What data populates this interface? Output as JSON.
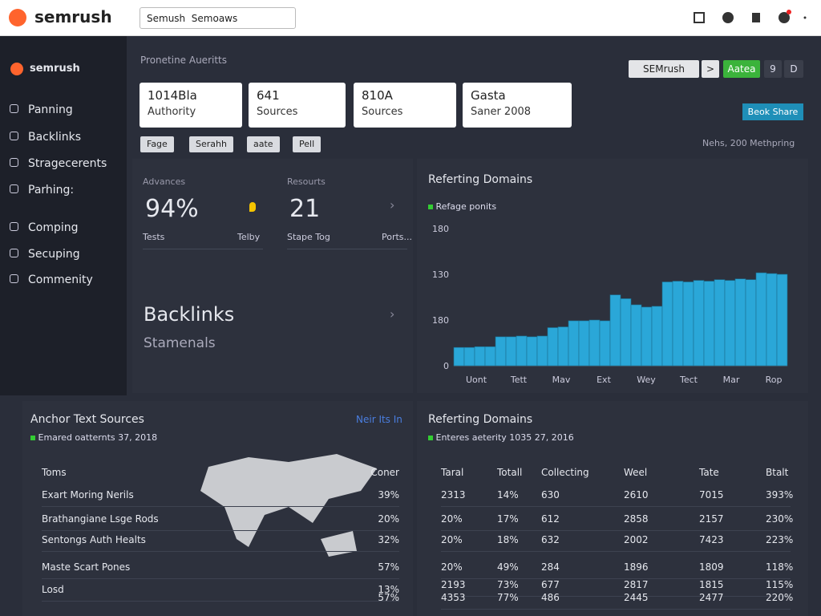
{
  "header": {
    "logo": "semrush",
    "search": [
      "Semush",
      "Semoaws"
    ]
  },
  "sidebar": {
    "brand": "semrush",
    "items": [
      "Panning",
      "Backlinks",
      "Stragecerents",
      "Parhing:",
      "Comping",
      "Secuping",
      "Commenity"
    ]
  },
  "top": {
    "title": "Pronetine Aueritts",
    "buttons": [
      "SEMrush",
      ">",
      "Aatea",
      "9",
      "D"
    ],
    "share": "Beok Share",
    "note": "Nehs, 200 Methpring",
    "cards": [
      {
        "value": "1014Bla",
        "label": "Authority"
      },
      {
        "value": "641",
        "label": "Sources"
      },
      {
        "value": "810A",
        "label": "Sources"
      },
      {
        "value": "Gasta",
        "label": "Saner 2008"
      }
    ],
    "chips": [
      "Fage",
      "Serahh",
      "aate",
      "Pell"
    ]
  },
  "stats": [
    {
      "label": "Advances",
      "value": "94%",
      "left": "Tests",
      "right": "Telby"
    },
    {
      "label": "Resourts",
      "value": "21",
      "left": "Stape Tog",
      "right": "Ports..."
    }
  ],
  "backlinks": {
    "title": "Backlinks",
    "subtitle": "Stamenals"
  },
  "referring_chart": {
    "type": "bar",
    "title": "Referting Domains",
    "legend": "Refage ponits",
    "color": "#2aa7d8",
    "y_labels": [
      "180",
      "130",
      "180",
      "0"
    ],
    "categories": [
      "Uont",
      "Tett",
      "Mav",
      "Ext",
      "Wey",
      "Tect",
      "Mar",
      "Rop"
    ],
    "ylim": [
      0,
      180
    ],
    "values": [
      24,
      24,
      25,
      25,
      38,
      38,
      39,
      38,
      39,
      50,
      51,
      59,
      59,
      60,
      59,
      93,
      88,
      80,
      77,
      78,
      110,
      111,
      110,
      112,
      111,
      113,
      112,
      114,
      113,
      122,
      121,
      120
    ]
  },
  "anchor": {
    "title": "Anchor Text Sources",
    "link": "Neir Its In",
    "subtitle": "Emared oatternts 37, 2018",
    "columns": [
      "Toms",
      "Coner"
    ],
    "rows": [
      [
        "Exart Moring Nerils",
        "39%"
      ],
      [
        "Brathangiane Lsge Rods",
        "20%"
      ],
      [
        "Sentongs Auth Healts",
        "32%"
      ],
      [
        "Maste Scart Pones",
        "57%"
      ],
      [
        "Losd",
        "13%"
      ]
    ],
    "extra": "57%"
  },
  "domains": {
    "title": "Referting Domains",
    "subtitle": "Enteres aeterity 1035 27, 2016",
    "columns": [
      "Taral",
      "Totall",
      "Collecting",
      "Weel",
      "Tate",
      "Btalt"
    ],
    "rows": [
      [
        "2313",
        "14%",
        "630",
        "2610",
        "7015",
        "393%"
      ],
      [
        "20%",
        "17%",
        "612",
        "2858",
        "2157",
        "230%"
      ],
      [
        "20%",
        "18%",
        "632",
        "2002",
        "7423",
        "223%"
      ],
      [
        "20%",
        "49%",
        "284",
        "1896",
        "1809",
        "118%"
      ],
      [
        "2193",
        "73%",
        "677",
        "2817",
        "1815",
        "115%"
      ],
      [
        "4353",
        "77%",
        "486",
        "2445",
        "2477",
        "220%"
      ]
    ]
  }
}
